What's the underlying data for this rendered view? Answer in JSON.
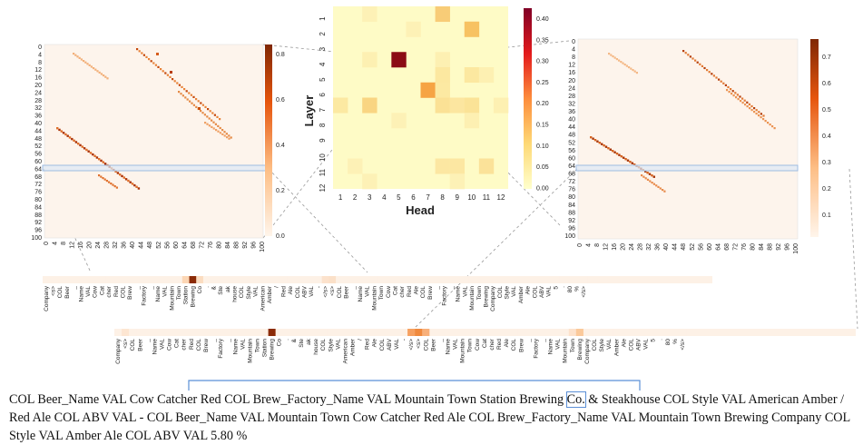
{
  "center_heatmap": {
    "ylabel": "Layer",
    "xlabel": "Head",
    "x_ticks": [
      "1",
      "2",
      "3",
      "4",
      "5",
      "6",
      "7",
      "8",
      "9",
      "10",
      "11",
      "12"
    ],
    "y_ticks": [
      "1",
      "2",
      "3",
      "4",
      "5",
      "6",
      "7",
      "8",
      "9",
      "10",
      "11",
      "12"
    ],
    "colorbar_ticks": [
      "0.40",
      "0.35",
      "0.30",
      "0.25",
      "0.20",
      "0.15",
      "0.10",
      "0.05",
      "0.00"
    ]
  },
  "left_heatmap": {
    "y_ticks": [
      "0",
      "4",
      "8",
      "12",
      "16",
      "20",
      "24",
      "28",
      "32",
      "36",
      "40",
      "44",
      "48",
      "52",
      "56",
      "60",
      "64",
      "68",
      "72",
      "76",
      "80",
      "84",
      "88",
      "92",
      "96",
      "100"
    ],
    "x_ticks": [
      "0",
      "4",
      "8",
      "12",
      "16",
      "20",
      "24",
      "28",
      "32",
      "36",
      "40",
      "44",
      "48",
      "52",
      "56",
      "60",
      "64",
      "68",
      "72",
      "76",
      "80",
      "84",
      "88",
      "92",
      "96",
      "100"
    ],
    "colorbar_ticks": [
      "0.8",
      "0.6",
      "0.4",
      "0.2",
      "0.0"
    ]
  },
  "right_heatmap": {
    "y_ticks": [
      "0",
      "4",
      "8",
      "12",
      "16",
      "20",
      "24",
      "28",
      "32",
      "36",
      "40",
      "44",
      "48",
      "52",
      "56",
      "60",
      "64",
      "68",
      "72",
      "76",
      "80",
      "84",
      "88",
      "92",
      "96",
      "100"
    ],
    "x_ticks": [
      "0",
      "4",
      "8",
      "12",
      "16",
      "20",
      "24",
      "28",
      "32",
      "36",
      "40",
      "44",
      "48",
      "52",
      "56",
      "60",
      "64",
      "68",
      "72",
      "76",
      "80",
      "84",
      "88",
      "92",
      "96",
      "100"
    ],
    "colorbar_ticks": [
      "0.7",
      "0.6",
      "0.5",
      "0.4",
      "0.3",
      "0.2",
      "0.1"
    ]
  },
  "strip_top_tokens": [
    "Company",
    "<s>",
    "COL",
    "Beer",
    "_",
    "Name",
    "VAL",
    "Cow",
    "Cat",
    "cher",
    "Red",
    "COL",
    "Brew",
    "_",
    "Factory",
    "_",
    "Name",
    "VAL",
    "Mountain",
    "Town",
    "Station",
    "Brewing",
    "Co",
    ".",
    "&",
    "Ste",
    "ak",
    "house",
    "COL",
    "Style",
    "VAL",
    "American",
    "Amber",
    "/",
    "Red",
    "Ale",
    "COL",
    "ABV",
    "VAL",
    "-",
    "</s>",
    "<s>",
    "COL",
    "Beer",
    "_",
    "Name",
    "VAL",
    "Mountain",
    "Town",
    "Cow",
    "Cat",
    "cher",
    "Red",
    "Ale",
    "COL",
    "Brew",
    "_",
    "Factory",
    "_",
    "Name",
    "VAL",
    "Mountain",
    "Town",
    "Brewing",
    "Company",
    "COL",
    "Style",
    "VAL",
    "Amber",
    "Ale",
    "COL",
    "ABV",
    "VAL",
    "5",
    ".",
    "80",
    "%",
    "</s>"
  ],
  "strip_bottom_tokens": [
    "Company",
    "<s>",
    "COL",
    "Beer",
    "_",
    "Name",
    "VAL",
    "Cow",
    "Cat",
    "cher",
    "Red",
    "COL",
    "Brew",
    "_",
    "Factory",
    "_",
    "Name",
    "VAL",
    "Mountain",
    "Town",
    "Station",
    "Brewing",
    "Co",
    ".",
    "&",
    "Ste",
    "ak",
    "house",
    "COL",
    "Style",
    "VAL",
    "American",
    "Amber",
    "/",
    "Red",
    "Ale",
    "COL",
    "ABV",
    "VAL",
    "-",
    "</s>",
    "<s>",
    "COL",
    "Beer",
    "_",
    "Name",
    "VAL",
    "Mountain",
    "Town",
    "Cow",
    "Cat",
    "cher",
    "Red",
    "Ale",
    "COL",
    "Brew",
    "_",
    "Factory",
    "_",
    "Name",
    "VAL",
    "Mountain",
    "Town",
    "Brewing",
    "Company",
    "COL",
    "Style",
    "VAL",
    "Amber",
    "Ale",
    "COL",
    "ABV",
    "VAL",
    "5",
    ".",
    "80",
    "%",
    "</s>"
  ],
  "caption": {
    "part1": "COL Beer_Name VAL Cow Catcher Red COL Brew_Factory_Name VAL Mountain Town Station Brewing ",
    "highlight": "Co.",
    "part2": " & Steakhouse COL Style VAL American Amber / Red Ale COL ABV VAL -     COL Beer_Name VAL Mountain Town Cow Catcher Red Ale COL Brew_Factory_Name VAL Mountain Town Brewing Company COL Style VAL Amber Ale COL ABV VAL 5.80 %"
  },
  "colors": {
    "pale": "#fdf4ec",
    "mid": "#f7b36a",
    "dark": "#8b0c14",
    "accent_box": "#9fbbe0"
  }
}
